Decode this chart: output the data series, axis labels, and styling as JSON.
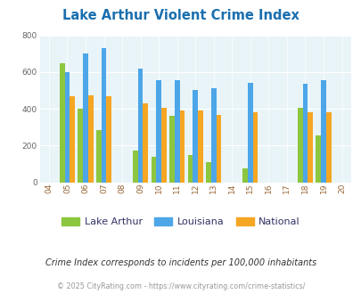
{
  "title": "Lake Arthur Violent Crime Index",
  "title_color": "#1a6faf",
  "years_with_data": [
    2005,
    2006,
    2007,
    2009,
    2010,
    2011,
    2012,
    2013,
    2015,
    2018,
    2019
  ],
  "lake_arthur": [
    650,
    400,
    285,
    175,
    140,
    360,
    148,
    110,
    78,
    405,
    255
  ],
  "louisiana": [
    598,
    700,
    730,
    618,
    555,
    558,
    500,
    510,
    540,
    535,
    555
  ],
  "national": [
    468,
    472,
    468,
    428,
    403,
    390,
    390,
    368,
    383,
    383,
    383
  ],
  "lake_arthur_color": "#8dc63f",
  "louisiana_color": "#4da6e8",
  "national_color": "#f5a623",
  "background_color": "#e8f4f8",
  "outer_background": "#ffffff",
  "xtick_start": 2004,
  "xtick_end": 2020,
  "ylim": [
    0,
    800
  ],
  "yticks": [
    0,
    200,
    400,
    600,
    800
  ],
  "bar_width": 0.28,
  "footnote1": "Crime Index corresponds to incidents per 100,000 inhabitants",
  "footnote2": "© 2025 CityRating.com - https://www.cityrating.com/crime-statistics/",
  "footnote1_color": "#333333",
  "footnote2_color": "#999999",
  "legend_labels": [
    "Lake Arthur",
    "Louisiana",
    "National"
  ]
}
